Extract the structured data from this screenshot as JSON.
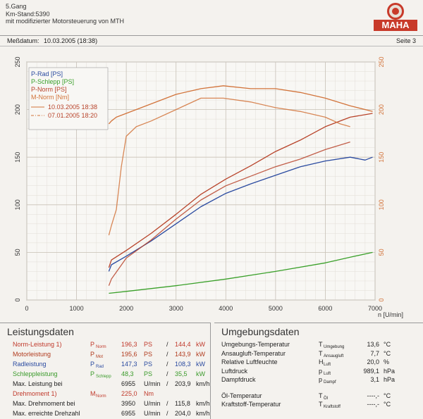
{
  "header": {
    "line1": "5.Gang",
    "line2": "Km-Stand:5390",
    "line3": "mit modifizierter Motorsteuerung von MTH",
    "logo_text": "MAHA"
  },
  "datebar": {
    "label": "Meßdatum:",
    "date": "10.03.2005 (18:38)",
    "page": "Seite 3"
  },
  "colors": {
    "p_rad": "#2a4aa0",
    "p_schlepp": "#3aa02a",
    "p_norm": "#b8432a",
    "m_norm": "#d2733a",
    "dashed": "#d98a4a"
  },
  "chart_data": {
    "type": "line",
    "xlabel": "n [U/min]",
    "xlim": [
      0,
      7000
    ],
    "xticks": [
      0,
      1000,
      2000,
      3000,
      4000,
      5000,
      6000,
      7000
    ],
    "ylim_left": [
      0,
      250
    ],
    "ylim_right": [
      0,
      250
    ],
    "yticks_left": [
      0,
      50,
      100,
      150,
      200,
      250
    ],
    "yticks_right": [
      0,
      50,
      100,
      150,
      200,
      250
    ],
    "grid": true,
    "legend": [
      "P-Rad [PS]",
      "P-Schlepp [PS]",
      "P-Norm [PS]",
      "M-Norm [Nm]"
    ],
    "legend_runs": [
      "10.03.2005 18:38",
      "07.01.2005 18:20"
    ],
    "series": [
      {
        "name": "P-Rad [PS]",
        "run": "10.03.2005 18:38",
        "x": [
          1650,
          1700,
          2000,
          2500,
          3000,
          3500,
          4000,
          4500,
          5000,
          5500,
          6000,
          6500,
          6800,
          6950
        ],
        "y": [
          30,
          37,
          46,
          62,
          80,
          98,
          112,
          122,
          131,
          140,
          146,
          150,
          147,
          150
        ]
      },
      {
        "name": "P-Schlepp [PS]",
        "run": "10.03.2005 18:38",
        "x": [
          1650,
          2000,
          3000,
          4000,
          5000,
          6000,
          6500,
          6950
        ],
        "y": [
          7,
          9,
          15,
          22,
          30,
          39,
          45,
          50
        ]
      },
      {
        "name": "P-Norm [PS]",
        "run": "10.03.2005 18:38",
        "x": [
          1650,
          1700,
          2000,
          2500,
          3000,
          3500,
          4000,
          4500,
          5000,
          5500,
          6000,
          6500,
          6950
        ],
        "y": [
          34,
          42,
          52,
          70,
          90,
          111,
          127,
          141,
          156,
          168,
          182,
          192,
          196
        ]
      },
      {
        "name": "P-Norm [PS]",
        "run": "07.01.2005 18:20",
        "x": [
          1650,
          1700,
          2000,
          2500,
          3000,
          3500,
          4000,
          4500,
          5000,
          5500,
          6000,
          6500
        ],
        "y": [
          15,
          22,
          44,
          63,
          85,
          105,
          120,
          130,
          140,
          148,
          158,
          166
        ]
      },
      {
        "name": "M-Norm [Nm]",
        "run": "10.03.2005 18:38",
        "x": [
          1650,
          1700,
          1800,
          2000,
          2500,
          3000,
          3500,
          3950,
          4500,
          5000,
          5500,
          6000,
          6500,
          6950
        ],
        "y": [
          185,
          188,
          192,
          196,
          206,
          216,
          222,
          225,
          222,
          222,
          218,
          212,
          204,
          198
        ]
      },
      {
        "name": "M-Norm [Nm]",
        "run": "07.01.2005 18:20",
        "x": [
          1650,
          1700,
          1800,
          1900,
          2000,
          2200,
          2500,
          3000,
          3500,
          3950,
          4500,
          5000,
          5500,
          6000,
          6300,
          6500
        ],
        "y": [
          68,
          78,
          95,
          140,
          172,
          182,
          188,
          200,
          212,
          212,
          208,
          202,
          198,
          192,
          185,
          182
        ]
      }
    ]
  },
  "leistung": {
    "title": "Leistungsdaten",
    "rows": [
      {
        "label": "Norm-Leistung",
        "sup": "1)",
        "sym": "P",
        "sub": "Norm",
        "v1": "196,3",
        "u1": "PS",
        "sep": "/",
        "v2": "144,4",
        "u2": "kW"
      },
      {
        "label": "Motorleistung",
        "sup": "",
        "sym": "P",
        "sub": "Mot",
        "v1": "195,6",
        "u1": "PS",
        "sep": "/",
        "v2": "143,9",
        "u2": "kW"
      },
      {
        "label": "Radleistung",
        "sup": "",
        "sym": "P",
        "sub": "Rad",
        "v1": "147,3",
        "u1": "PS",
        "sep": "/",
        "v2": "108,3",
        "u2": "kW"
      },
      {
        "label": "Schleppleistung",
        "sup": "",
        "sym": "P",
        "sub": "Schlepp",
        "v1": "48,3",
        "u1": "PS",
        "sep": "/",
        "v2": "35,5",
        "u2": "kW"
      },
      {
        "label": "Max. Leistung bei",
        "sup": "",
        "sym": "",
        "sub": "",
        "v1": "6955",
        "u1": "U/min",
        "sep": "/",
        "v2": "203,9",
        "u2": "km/h"
      },
      {
        "label": "Drehmoment",
        "sup": "1)",
        "sym": "M",
        "sub": "Norm",
        "v1": "225,0",
        "u1": "Nm",
        "sep": "",
        "v2": "",
        "u2": ""
      },
      {
        "label": "Max. Drehmoment bei",
        "sup": "",
        "sym": "",
        "sub": "",
        "v1": "3950",
        "u1": "U/min",
        "sep": "/",
        "v2": "115,8",
        "u2": "km/h"
      },
      {
        "label": "Max. erreichte Drehzahl",
        "sup": "",
        "sym": "",
        "sub": "",
        "v1": "6955",
        "u1": "U/min",
        "sep": "/",
        "v2": "204,0",
        "u2": "km/h"
      }
    ]
  },
  "umgebung": {
    "title": "Umgebungsdaten",
    "rows": [
      {
        "label": "Umgebungs-Temperatur",
        "sym": "T",
        "sub": "Umgebung",
        "val": "13,6",
        "unit": "°C"
      },
      {
        "label": "Ansaugluft-Temperatur",
        "sym": "T",
        "sub": "Ansaugluft",
        "val": "7,7",
        "unit": "°C"
      },
      {
        "label": "Relative Luftfeuchte",
        "sym": "H",
        "sub": "Luft",
        "val": "20,0",
        "unit": "%"
      },
      {
        "label": "Luftdruck",
        "sym": "p",
        "sub": "Luft",
        "val": "989,1",
        "unit": "hPa"
      },
      {
        "label": "Dampfdruck",
        "sym": "p",
        "sub": "Dampf",
        "val": "3,1",
        "unit": "hPa"
      },
      {
        "label": "Öl-Temperatur",
        "sym": "T",
        "sub": "Öl",
        "val": "----,-",
        "unit": "°C"
      },
      {
        "label": "Kraftstoff-Temperatur",
        "sym": "T",
        "sub": "Kraftstoff",
        "val": "----,-",
        "unit": "°C"
      }
    ]
  }
}
